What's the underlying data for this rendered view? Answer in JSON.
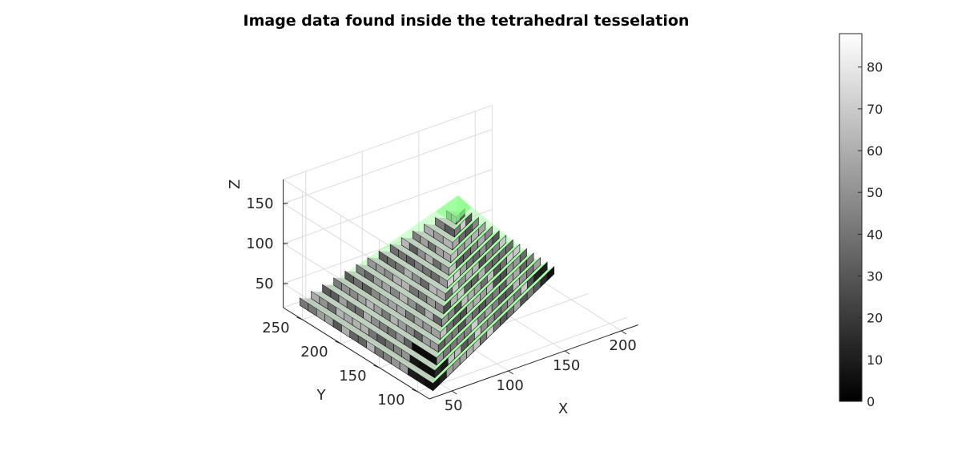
{
  "chart_data": {
    "type": "3d-voxel",
    "title": "Image data found inside the tetrahedral tesselation",
    "xlabel": "X",
    "ylabel": "Y",
    "zlabel": "Z",
    "x_ticks": [
      50,
      100,
      150,
      200
    ],
    "y_ticks": [
      100,
      150,
      200,
      250
    ],
    "z_ticks": [
      50,
      100,
      150
    ],
    "xlim": [
      30,
      215
    ],
    "ylim": [
      85,
      275
    ],
    "zlim": [
      20,
      180
    ],
    "grid": true,
    "colormap": "gray",
    "colorbar": {
      "ticks": [
        0,
        10,
        20,
        30,
        40,
        50,
        60,
        70,
        80
      ],
      "range": [
        0,
        88
      ],
      "placement": "right"
    },
    "overlay": {
      "shape": "tetrahedron",
      "face_color": "#7CFF7C",
      "opacity": 0.5
    },
    "grid_color": "#dcdcdc",
    "axis_color": "#262626"
  }
}
